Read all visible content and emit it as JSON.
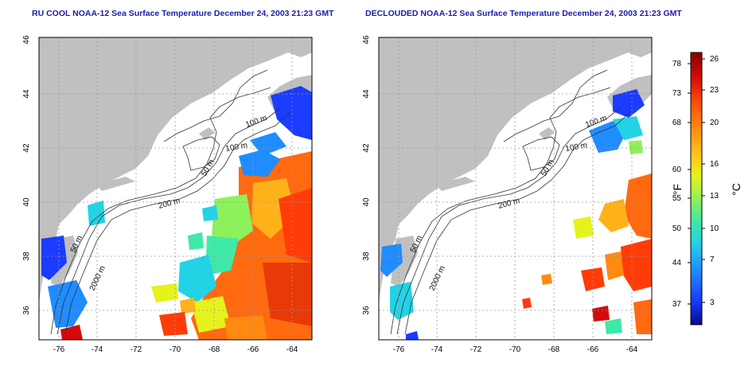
{
  "left_panel": {
    "title": "RU COOL NOAA-12 Sea Surface Temperature December 24, 2003 21:23 GMT",
    "contour_labels": [
      "100 m",
      "100 m",
      "50 m",
      "200 m",
      "50 m",
      "2000 m"
    ]
  },
  "right_panel": {
    "title": "DECLOUDED NOAA-12 Sea Surface Temperature December 24, 2003 21:23 GMT",
    "contour_labels": [
      "100 m",
      "100 m",
      "50 m",
      "200 m",
      "50 m",
      "2000 m"
    ]
  },
  "axes": {
    "x_ticks": [
      "-76",
      "-74",
      "-72",
      "-70",
      "-68",
      "-66",
      "-64"
    ],
    "y_ticks": [
      "46",
      "44",
      "42",
      "40",
      "38",
      "36"
    ]
  },
  "colorbar": {
    "fahrenheit_label": "°F",
    "celsius_label": "°C",
    "fahrenheit_ticks": [
      "78",
      "73",
      "68",
      "60",
      "55",
      "50",
      "44",
      "37"
    ],
    "celsius_ticks": [
      "26",
      "23",
      "20",
      "16",
      "13",
      "10",
      "7",
      "3"
    ],
    "colors": [
      "#08088f",
      "#1a3cff",
      "#1f8cff",
      "#22d3e6",
      "#3fe9a8",
      "#8df25a",
      "#e6f21c",
      "#ffc21a",
      "#ff8a12",
      "#ff4a0a",
      "#d40a0a",
      "#8a0000"
    ]
  },
  "colors": {
    "land": "#c0c0c0",
    "ocean": "#ffffff",
    "title": "#1c1ca8",
    "grid": "#9a9a9a"
  }
}
